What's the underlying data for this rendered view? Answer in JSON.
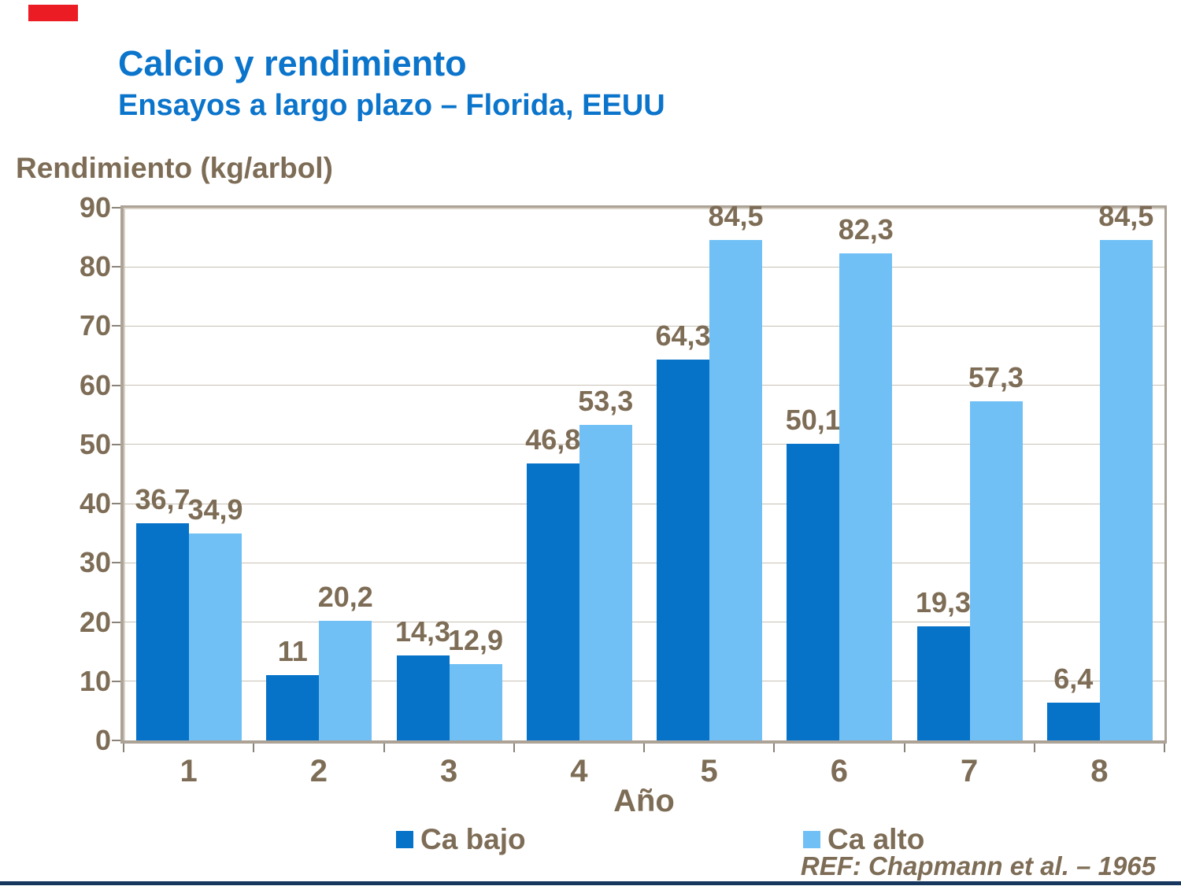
{
  "slide": {
    "title": "Calcio y rendimiento",
    "subtitle": "Ensayos a largo plazo – Florida, EEUU",
    "reference": "REF: Chapmann et al. – 1965"
  },
  "colors": {
    "title_blue": "#0B74CB",
    "text_brown": "#7E6D56",
    "bar_dark_blue": "#0673C8",
    "bar_light_blue": "#70C0F6",
    "gridline": "#C8C1B5",
    "plot_border": "#ACA296",
    "tick": "#8A8378",
    "bottom_band": "#17365D",
    "red_accent": "#EB1C24"
  },
  "chart_data": {
    "type": "bar",
    "title": "Calcio y rendimiento — Ensayos a largo plazo – Florida, EEUU",
    "ylabel": "Rendimiento (kg/arbol)",
    "xlabel": "Año",
    "categories": [
      "1",
      "2",
      "3",
      "4",
      "5",
      "6",
      "7",
      "8"
    ],
    "series": [
      {
        "name": "Ca bajo",
        "color": "#0673C8",
        "values": [
          36.7,
          11,
          14.3,
          46.8,
          64.3,
          50.1,
          19.3,
          6.4
        ],
        "labels": [
          "36,7",
          "11",
          "14,3",
          "46,8",
          "64,3",
          "50,1",
          "19,3",
          "6,4"
        ]
      },
      {
        "name": "Ca alto",
        "color": "#70C0F6",
        "values": [
          34.9,
          20.2,
          12.9,
          53.3,
          84.5,
          82.3,
          57.3,
          84.5
        ],
        "labels": [
          "34,9",
          "20,2",
          "12,9",
          "53,3",
          "84,5",
          "82,3",
          "57,3",
          "84,5"
        ]
      }
    ],
    "ylim": [
      0,
      90
    ],
    "yticks": [
      0,
      10,
      20,
      30,
      40,
      50,
      60,
      70,
      80,
      90
    ],
    "grid": true,
    "legend_position": "bottom"
  }
}
